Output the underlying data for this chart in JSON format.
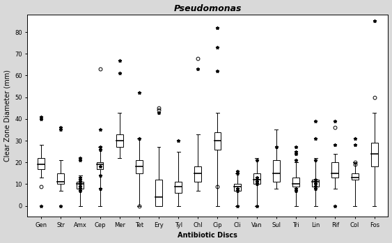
{
  "title": "Pseudomonas",
  "xlabel": "Antibiotic Discs",
  "ylabel": "Clear Zone Diameter (mm)",
  "categories": [
    "Gen",
    "Str",
    "Amx",
    "Cep",
    "Mer",
    "Tet",
    "Ery",
    "Tyl",
    "Chl",
    "Cip",
    "Cli",
    "Van",
    "Sul",
    "Tri",
    "Lin",
    "Rif",
    "Col",
    "Fos"
  ],
  "ylim": [
    -5,
    88
  ],
  "yticks": [
    0,
    10,
    20,
    30,
    40,
    50,
    60,
    70,
    80
  ],
  "boxes": {
    "Gen": {
      "q1": 17,
      "median": 19,
      "q3": 22,
      "whislo": 13,
      "whishi": 28
    },
    "Str": {
      "q1": 10,
      "median": 11,
      "q3": 15,
      "whislo": 7,
      "whishi": 21
    },
    "Amx": {
      "q1": 8,
      "median": 10,
      "q3": 11,
      "whislo": 0,
      "whishi": 14
    },
    "Cep": {
      "q1": 17,
      "median": 19,
      "q3": 20,
      "whislo": 0,
      "whishi": 27
    },
    "Mer": {
      "q1": 27,
      "median": 30,
      "q3": 33,
      "whislo": 22,
      "whishi": 43
    },
    "Tet": {
      "q1": 15,
      "median": 18,
      "q3": 21,
      "whislo": 0,
      "whishi": 31
    },
    "Ery": {
      "q1": 0,
      "median": 4,
      "q3": 12,
      "whislo": 0,
      "whishi": 27
    },
    "Tyl": {
      "q1": 6,
      "median": 9,
      "q3": 11,
      "whislo": 0,
      "whishi": 25
    },
    "Chl": {
      "q1": 11,
      "median": 15,
      "q3": 18,
      "whislo": 7,
      "whishi": 33
    },
    "Cip": {
      "q1": 26,
      "median": 30,
      "q3": 34,
      "whislo": 0,
      "whishi": 43
    },
    "Cli": {
      "q1": 7,
      "median": 9,
      "q3": 10,
      "whislo": 0,
      "whishi": 15
    },
    "Van": {
      "q1": 10,
      "median": 12,
      "q3": 15,
      "whislo": 0,
      "whishi": 22
    },
    "Sul": {
      "q1": 11,
      "median": 15,
      "q3": 21,
      "whislo": 8,
      "whishi": 35
    },
    "Tri": {
      "q1": 9,
      "median": 10,
      "q3": 13,
      "whislo": 0,
      "whishi": 20
    },
    "Lin": {
      "q1": 9,
      "median": 11,
      "q3": 12,
      "whislo": 0,
      "whishi": 22
    },
    "Rif": {
      "q1": 13,
      "median": 15,
      "q3": 20,
      "whislo": 8,
      "whishi": 24
    },
    "Col": {
      "q1": 12,
      "median": 13,
      "q3": 15,
      "whislo": 0,
      "whishi": 20
    },
    "Fos": {
      "q1": 18,
      "median": 24,
      "q3": 29,
      "whislo": 0,
      "whishi": 43
    }
  },
  "fliers_star": {
    "Gen": [
      40,
      41,
      0
    ],
    "Str": [
      35,
      36,
      0
    ],
    "Amx": [
      21,
      22,
      7,
      8,
      9,
      10,
      11,
      12,
      13
    ],
    "Cep": [
      35,
      26,
      27,
      18,
      14,
      8
    ],
    "Mer": [
      67,
      61
    ],
    "Tet": [
      52,
      31
    ],
    "Ery": [
      43
    ],
    "Tyl": [
      30
    ],
    "Chl": [
      63
    ],
    "Cip": [
      82,
      73,
      62
    ],
    "Cli": [
      15,
      16,
      8,
      7,
      0
    ],
    "Van": [
      21,
      13,
      12,
      11,
      10,
      0
    ],
    "Sul": [
      27
    ],
    "Tri": [
      27,
      25,
      24,
      21,
      8,
      7
    ],
    "Lin": [
      39,
      31,
      21,
      12,
      11,
      10,
      9,
      8
    ],
    "Rif": [
      39,
      28,
      0
    ],
    "Col": [
      31,
      28
    ],
    "Fos": [
      85
    ]
  },
  "fliers_circle": {
    "Gen": [
      9
    ],
    "Str": [],
    "Amx": [],
    "Cep": [
      63
    ],
    "Mer": [],
    "Tet": [
      0
    ],
    "Ery": [
      45,
      44
    ],
    "Tyl": [],
    "Chl": [
      68
    ],
    "Cip": [
      9
    ],
    "Cli": [],
    "Van": [],
    "Sul": [],
    "Tri": [],
    "Lin": [],
    "Rif": [
      36
    ],
    "Col": [
      19,
      20
    ],
    "Fos": [
      50
    ]
  },
  "background_color": "#d9d9d9",
  "plot_bg_color": "#ffffff",
  "figsize": [
    5.63,
    3.49
  ],
  "dpi": 100,
  "box_width": 0.35,
  "title_fontsize": 9,
  "axis_label_fontsize": 7,
  "tick_fontsize": 6,
  "marker_size_star": 3.5,
  "marker_size_circle": 3.5
}
